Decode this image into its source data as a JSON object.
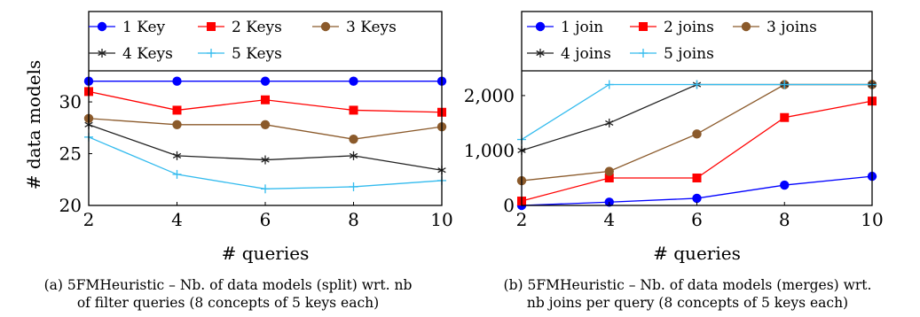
{
  "chart_data": [
    {
      "type": "line",
      "xlabel": "# queries",
      "ylabel": "# data models",
      "x": [
        2,
        4,
        6,
        8,
        10
      ],
      "xticks": [
        "2",
        "4",
        "6",
        "8",
        "10"
      ],
      "ylim": [
        20,
        33
      ],
      "yticks": [
        20,
        25,
        30
      ],
      "ytick_labels": [
        "20",
        "25",
        "30"
      ],
      "legend_position": "top",
      "series": [
        {
          "name": "1 Key",
          "color": "#0000ff",
          "marker": "circle",
          "values": [
            32,
            32,
            32,
            32,
            32
          ]
        },
        {
          "name": "2 Keys",
          "color": "#ff0000",
          "marker": "square",
          "values": [
            31,
            29.2,
            30.2,
            29.2,
            29
          ]
        },
        {
          "name": "3 Keys",
          "color": "#8b5a2b",
          "marker": "circle",
          "values": [
            28.4,
            27.8,
            27.8,
            26.4,
            27.6
          ]
        },
        {
          "name": "4 Keys",
          "color": "#222222",
          "marker": "star",
          "values": [
            27.8,
            24.8,
            24.4,
            24.8,
            23.4
          ]
        },
        {
          "name": "5 Keys",
          "color": "#33bbee",
          "marker": "plus",
          "values": [
            26.6,
            23,
            21.6,
            21.8,
            22.4
          ]
        }
      ]
    },
    {
      "type": "line",
      "xlabel": "# queries",
      "ylabel": "",
      "x": [
        2,
        4,
        6,
        8,
        10
      ],
      "xticks": [
        "2",
        "4",
        "6",
        "8",
        "10"
      ],
      "ylim": [
        0,
        2450
      ],
      "yticks": [
        0,
        1000,
        2000
      ],
      "ytick_labels": [
        "0",
        "1,000",
        "2,000"
      ],
      "legend_position": "top",
      "series": [
        {
          "name": "1 join",
          "color": "#0000ff",
          "marker": "circle",
          "values": [
            0,
            60,
            130,
            370,
            530
          ]
        },
        {
          "name": "2 joins",
          "color": "#ff0000",
          "marker": "square",
          "values": [
            80,
            500,
            500,
            1600,
            1900
          ]
        },
        {
          "name": "3 joins",
          "color": "#8b5a2b",
          "marker": "circle",
          "values": [
            450,
            620,
            1300,
            2200,
            2200
          ]
        },
        {
          "name": "4 joins",
          "color": "#222222",
          "marker": "star",
          "values": [
            1000,
            1500,
            2200,
            2200,
            2200
          ]
        },
        {
          "name": "5 joins",
          "color": "#33bbee",
          "marker": "plus",
          "values": [
            1200,
            2200,
            2200,
            2200,
            2200
          ]
        }
      ]
    }
  ],
  "captions": {
    "a_line1": "(a) 5FMHeuristic – Nb. of data models (split) wrt. nb",
    "a_line2": "of filter queries (8 concepts of 5 keys each)",
    "b_line1": "(b) 5FMHeuristic – Nb. of data models (merges) wrt.",
    "b_line2": "nb joins per query (8 concepts of 5 keys each)"
  }
}
